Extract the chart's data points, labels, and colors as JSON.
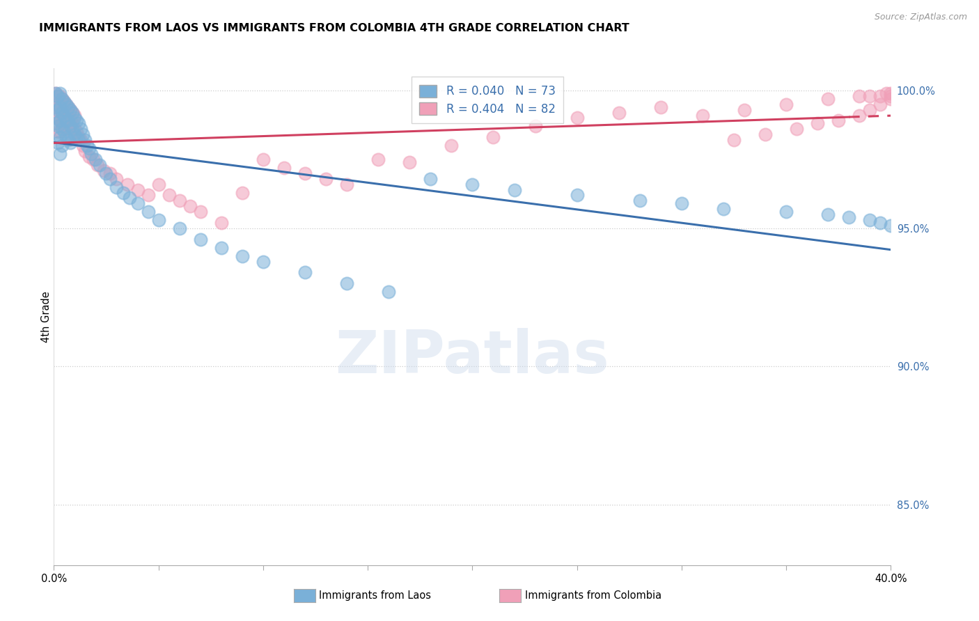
{
  "title": "IMMIGRANTS FROM LAOS VS IMMIGRANTS FROM COLOMBIA 4TH GRADE CORRELATION CHART",
  "source": "Source: ZipAtlas.com",
  "ylabel": "4th Grade",
  "xlabel_laos": "Immigrants from Laos",
  "xlabel_colombia": "Immigrants from Colombia",
  "R_laos": 0.04,
  "N_laos": 73,
  "R_colombia": 0.404,
  "N_colombia": 82,
  "xlim": [
    0.0,
    0.4
  ],
  "ylim": [
    0.828,
    1.008
  ],
  "yticks": [
    0.85,
    0.9,
    0.95,
    1.0
  ],
  "ytick_labels": [
    "85.0%",
    "90.0%",
    "95.0%",
    "100.0%"
  ],
  "xticks": [
    0.0,
    0.05,
    0.1,
    0.15,
    0.2,
    0.25,
    0.3,
    0.35,
    0.4
  ],
  "xtick_labels": [
    "0.0%",
    "",
    "",
    "",
    "",
    "",
    "",
    "",
    "40.0%"
  ],
  "color_laos": "#7ab0d8",
  "color_colombia": "#f0a0b8",
  "trendline_laos_color": "#3a6fac",
  "trendline_colombia_color": "#d04060",
  "background_color": "#ffffff",
  "watermark": "ZIPatlas",
  "laos_x": [
    0.001,
    0.001,
    0.001,
    0.002,
    0.002,
    0.002,
    0.002,
    0.003,
    0.003,
    0.003,
    0.003,
    0.003,
    0.004,
    0.004,
    0.004,
    0.004,
    0.005,
    0.005,
    0.005,
    0.006,
    0.006,
    0.006,
    0.007,
    0.007,
    0.007,
    0.008,
    0.008,
    0.008,
    0.009,
    0.009,
    0.01,
    0.01,
    0.011,
    0.011,
    0.012,
    0.012,
    0.013,
    0.014,
    0.015,
    0.016,
    0.017,
    0.018,
    0.02,
    0.022,
    0.025,
    0.027,
    0.03,
    0.033,
    0.036,
    0.04,
    0.045,
    0.05,
    0.06,
    0.07,
    0.08,
    0.09,
    0.1,
    0.12,
    0.14,
    0.16,
    0.18,
    0.2,
    0.22,
    0.25,
    0.28,
    0.3,
    0.32,
    0.35,
    0.37,
    0.38,
    0.39,
    0.395,
    0.4
  ],
  "laos_y": [
    0.999,
    0.994,
    0.988,
    0.998,
    0.993,
    0.987,
    0.981,
    0.999,
    0.994,
    0.989,
    0.983,
    0.977,
    0.997,
    0.992,
    0.986,
    0.98,
    0.996,
    0.991,
    0.985,
    0.995,
    0.989,
    0.983,
    0.994,
    0.989,
    0.982,
    0.993,
    0.987,
    0.981,
    0.992,
    0.986,
    0.99,
    0.984,
    0.989,
    0.983,
    0.988,
    0.982,
    0.986,
    0.984,
    0.982,
    0.98,
    0.979,
    0.977,
    0.975,
    0.973,
    0.97,
    0.968,
    0.965,
    0.963,
    0.961,
    0.959,
    0.956,
    0.953,
    0.95,
    0.946,
    0.943,
    0.94,
    0.938,
    0.934,
    0.93,
    0.927,
    0.968,
    0.966,
    0.964,
    0.962,
    0.96,
    0.959,
    0.957,
    0.956,
    0.955,
    0.954,
    0.953,
    0.952,
    0.951
  ],
  "colombia_x": [
    0.001,
    0.001,
    0.001,
    0.002,
    0.002,
    0.002,
    0.002,
    0.003,
    0.003,
    0.003,
    0.003,
    0.004,
    0.004,
    0.004,
    0.005,
    0.005,
    0.005,
    0.006,
    0.006,
    0.006,
    0.007,
    0.007,
    0.008,
    0.008,
    0.008,
    0.009,
    0.009,
    0.01,
    0.01,
    0.011,
    0.012,
    0.013,
    0.014,
    0.015,
    0.017,
    0.019,
    0.021,
    0.024,
    0.027,
    0.03,
    0.035,
    0.04,
    0.045,
    0.05,
    0.055,
    0.06,
    0.065,
    0.07,
    0.08,
    0.09,
    0.1,
    0.11,
    0.12,
    0.13,
    0.14,
    0.155,
    0.17,
    0.19,
    0.21,
    0.23,
    0.25,
    0.27,
    0.29,
    0.31,
    0.33,
    0.35,
    0.37,
    0.385,
    0.39,
    0.395,
    0.398,
    0.4,
    0.4,
    0.4,
    0.395,
    0.39,
    0.385,
    0.375,
    0.365,
    0.355,
    0.34,
    0.325
  ],
  "colombia_y": [
    0.999,
    0.995,
    0.99,
    0.998,
    0.994,
    0.99,
    0.985,
    0.998,
    0.994,
    0.989,
    0.985,
    0.997,
    0.992,
    0.988,
    0.996,
    0.991,
    0.987,
    0.995,
    0.991,
    0.986,
    0.994,
    0.99,
    0.993,
    0.989,
    0.984,
    0.992,
    0.988,
    0.991,
    0.986,
    0.985,
    0.983,
    0.982,
    0.98,
    0.978,
    0.976,
    0.975,
    0.973,
    0.971,
    0.97,
    0.968,
    0.966,
    0.964,
    0.962,
    0.966,
    0.962,
    0.96,
    0.958,
    0.956,
    0.952,
    0.963,
    0.975,
    0.972,
    0.97,
    0.968,
    0.966,
    0.975,
    0.974,
    0.98,
    0.983,
    0.987,
    0.99,
    0.992,
    0.994,
    0.991,
    0.993,
    0.995,
    0.997,
    0.998,
    0.998,
    0.998,
    0.999,
    0.999,
    0.998,
    0.997,
    0.995,
    0.993,
    0.991,
    0.989,
    0.988,
    0.986,
    0.984,
    0.982
  ]
}
